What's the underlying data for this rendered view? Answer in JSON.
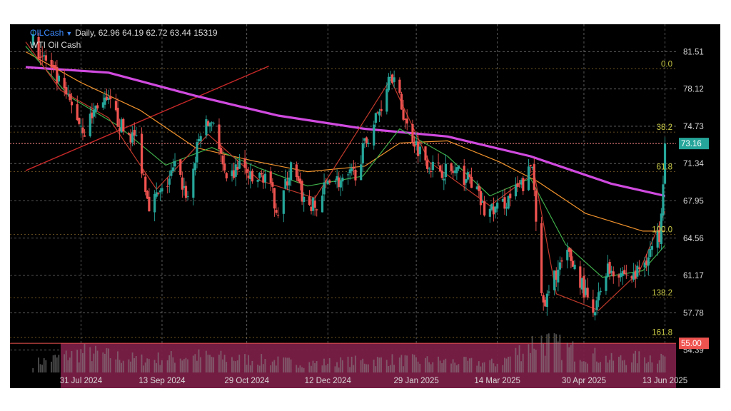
{
  "header": {
    "symbol": "OILCash",
    "interval": "Daily",
    "ohlcv": "62.96 64.19 62.72 63.44 15319",
    "name": "WTI Oil Cash"
  },
  "colors": {
    "background": "#000000",
    "grid": "#6e6e6e",
    "up_candle": "#26a69a",
    "down_candle": "#ef5350",
    "fib_label": "#c8c846",
    "ma_green": "#3fae49",
    "ma_red": "#c0392b",
    "ma_orange": "#f0922c",
    "ma_magenta": "#d04adf",
    "trendline": "#c62828",
    "current_price_bg": "#26a69a",
    "alert_price_bg": "#ef5350",
    "zone_fill": "#7a1f47",
    "volume": "#8a8a8a"
  },
  "chart_data": {
    "type": "candlestick",
    "title": "WTI Oil Cash",
    "x_tick_labels": [
      "31 Jul 2024",
      "13 Sep 2024",
      "29 Oct 2024",
      "12 Dec 2024",
      "29 Jan 2025",
      "14 Mar 2025",
      "30 Apr 2025",
      "13 Jun 2025"
    ],
    "x_range": [
      "2024-07-01",
      "2025-06-19"
    ],
    "y_tick_labels": [
      "81.51",
      "78.12",
      "74.73",
      "71.34",
      "67.95",
      "64.56",
      "61.17",
      "57.78",
      "54.39"
    ],
    "ylim": [
      53.0,
      84.0
    ],
    "grid": true,
    "current_price": {
      "label": "73.16",
      "value": 73.16
    },
    "alert_price": {
      "label": "55.00",
      "value": 55.0
    },
    "highlight_zone": {
      "from": 55.0,
      "to": 48.5,
      "start": "2024-07-20"
    },
    "fibonacci": [
      {
        "label": "0.0",
        "value": 79.95
      },
      {
        "label": "38.2",
        "value": 74.2
      },
      {
        "label": "61.8",
        "value": 70.6
      },
      {
        "label": "100.0",
        "value": 64.9
      },
      {
        "label": "138.2",
        "value": 59.15
      },
      {
        "label": "161.8",
        "value": 55.55
      }
    ],
    "trendline": {
      "from": [
        "2024-07-01",
        70.7
      ],
      "to": [
        "2024-11-10",
        80.2
      ]
    },
    "price_path": [
      [
        "2024-07-05",
        82.3
      ],
      [
        "2024-07-12",
        80.7
      ],
      [
        "2024-07-19",
        78.6
      ],
      [
        "2024-07-26",
        76.5
      ],
      [
        "2024-08-02",
        74.3
      ],
      [
        "2024-08-09",
        76.8
      ],
      [
        "2024-08-16",
        76.6
      ],
      [
        "2024-08-23",
        74.3
      ],
      [
        "2024-08-30",
        73.6
      ],
      [
        "2024-09-06",
        67.8
      ],
      [
        "2024-09-13",
        68.6
      ],
      [
        "2024-09-20",
        71.0
      ],
      [
        "2024-09-27",
        68.3
      ],
      [
        "2024-10-04",
        74.3
      ],
      [
        "2024-10-11",
        75.4
      ],
      [
        "2024-10-18",
        69.2
      ],
      [
        "2024-10-25",
        71.4
      ],
      [
        "2024-11-01",
        69.6
      ],
      [
        "2024-11-08",
        70.4
      ],
      [
        "2024-11-15",
        67.0
      ],
      [
        "2024-11-22",
        71.0
      ],
      [
        "2024-11-29",
        68.0
      ],
      [
        "2024-12-06",
        67.2
      ],
      [
        "2024-12-13",
        70.3
      ],
      [
        "2024-12-20",
        69.5
      ],
      [
        "2024-12-27",
        70.6
      ],
      [
        "2025-01-03",
        73.9
      ],
      [
        "2025-01-10",
        76.6
      ],
      [
        "2025-01-15",
        80.0
      ],
      [
        "2025-01-24",
        74.7
      ],
      [
        "2025-01-31",
        72.5
      ],
      [
        "2025-02-07",
        71.0
      ],
      [
        "2025-02-14",
        70.7
      ],
      [
        "2025-02-21",
        70.4
      ],
      [
        "2025-02-28",
        69.8
      ],
      [
        "2025-03-07",
        67.0
      ],
      [
        "2025-03-14",
        67.2
      ],
      [
        "2025-03-21",
        68.3
      ],
      [
        "2025-03-28",
        69.4
      ],
      [
        "2025-04-02",
        71.2
      ],
      [
        "2025-04-08",
        58.0
      ],
      [
        "2025-04-15",
        61.5
      ],
      [
        "2025-04-22",
        63.0
      ],
      [
        "2025-04-29",
        60.4
      ],
      [
        "2025-05-05",
        57.2
      ],
      [
        "2025-05-12",
        61.8
      ],
      [
        "2025-05-19",
        61.6
      ],
      [
        "2025-05-27",
        61.0
      ],
      [
        "2025-06-03",
        62.8
      ],
      [
        "2025-06-10",
        64.9
      ],
      [
        "2025-06-13",
        72.9
      ]
    ],
    "moving_averages": [
      {
        "color": "#d04adf",
        "points": [
          [
            "2024-07-01",
            80.1
          ],
          [
            "2024-08-15",
            79.6
          ],
          [
            "2024-10-01",
            77.5
          ],
          [
            "2024-11-15",
            75.7
          ],
          [
            "2025-01-01",
            74.5
          ],
          [
            "2025-02-15",
            73.8
          ],
          [
            "2025-04-01",
            72.0
          ],
          [
            "2025-05-15",
            69.5
          ],
          [
            "2025-06-13",
            68.4
          ]
        ]
      },
      {
        "color": "#f0922c",
        "points": [
          [
            "2024-07-01",
            81.5
          ],
          [
            "2024-07-31",
            78.7
          ],
          [
            "2024-09-01",
            76.2
          ],
          [
            "2024-10-01",
            72.8
          ],
          [
            "2024-11-01",
            71.6
          ],
          [
            "2024-12-01",
            70.6
          ],
          [
            "2025-01-01",
            71.1
          ],
          [
            "2025-01-20",
            73.2
          ],
          [
            "2025-02-15",
            73.4
          ],
          [
            "2025-03-15",
            71.5
          ],
          [
            "2025-04-05",
            69.7
          ],
          [
            "2025-05-01",
            66.8
          ],
          [
            "2025-06-01",
            65.2
          ],
          [
            "2025-06-13",
            65.2
          ]
        ]
      },
      {
        "color": "#3fae49",
        "points": [
          [
            "2024-07-01",
            82.0
          ],
          [
            "2024-07-25",
            77.4
          ],
          [
            "2024-08-20",
            74.8
          ],
          [
            "2024-09-15",
            71.2
          ],
          [
            "2024-10-10",
            72.8
          ],
          [
            "2024-11-05",
            70.9
          ],
          [
            "2024-12-01",
            69.3
          ],
          [
            "2024-12-31",
            70.2
          ],
          [
            "2025-01-20",
            74.5
          ],
          [
            "2025-02-15",
            72.0
          ],
          [
            "2025-03-10",
            68.4
          ],
          [
            "2025-04-01",
            70.0
          ],
          [
            "2025-04-20",
            64.0
          ],
          [
            "2025-05-10",
            61.0
          ],
          [
            "2025-06-01",
            61.6
          ],
          [
            "2025-06-13",
            63.9
          ]
        ]
      },
      {
        "color": "#c0392b",
        "points": [
          [
            "2024-07-01",
            82.4
          ],
          [
            "2024-07-20",
            78.0
          ],
          [
            "2024-08-15",
            75.5
          ],
          [
            "2024-09-10",
            69.0
          ],
          [
            "2024-10-08",
            74.0
          ],
          [
            "2024-11-05",
            69.8
          ],
          [
            "2024-12-05",
            68.2
          ],
          [
            "2025-01-15",
            79.0
          ],
          [
            "2025-02-05",
            71.5
          ],
          [
            "2025-03-10",
            67.5
          ],
          [
            "2025-04-03",
            70.5
          ],
          [
            "2025-04-15",
            59.5
          ],
          [
            "2025-05-08",
            58.0
          ],
          [
            "2025-05-30",
            61.5
          ],
          [
            "2025-06-13",
            67.0
          ]
        ]
      }
    ],
    "volume_path": [
      [
        "2024-07-05",
        0.25
      ],
      [
        "2024-08-01",
        0.55
      ],
      [
        "2024-09-01",
        0.35
      ],
      [
        "2024-10-01",
        0.45
      ],
      [
        "2024-11-01",
        0.35
      ],
      [
        "2024-12-01",
        0.25
      ],
      [
        "2025-01-15",
        0.35
      ],
      [
        "2025-02-15",
        0.3
      ],
      [
        "2025-03-15",
        0.25
      ],
      [
        "2025-04-05",
        0.9
      ],
      [
        "2025-04-20",
        0.65
      ],
      [
        "2025-05-15",
        0.35
      ],
      [
        "2025-06-13",
        0.45
      ]
    ]
  }
}
